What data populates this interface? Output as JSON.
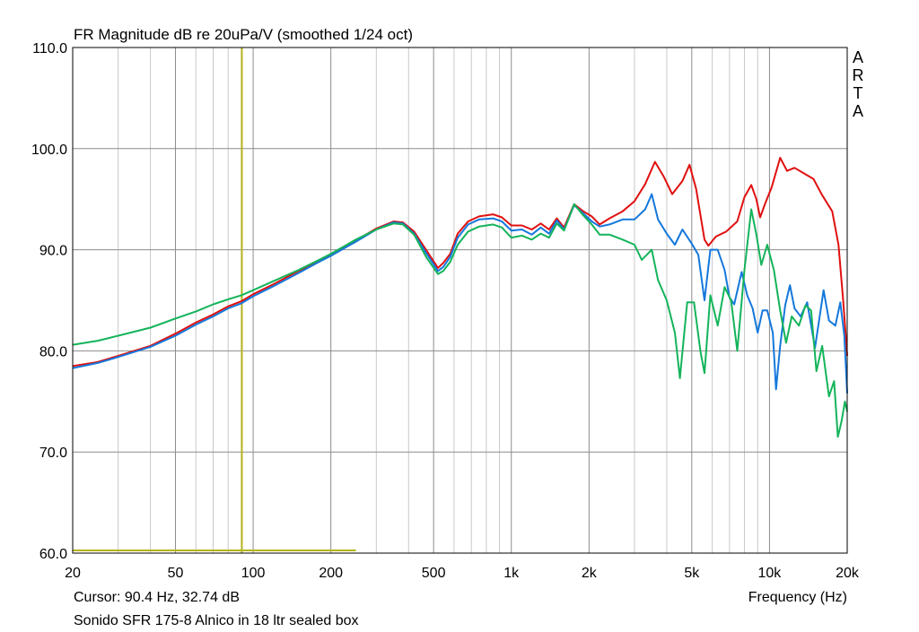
{
  "chart_data": {
    "type": "line",
    "title": "FR Magnitude dB re 20uPa/V (smoothed 1/24 oct)",
    "watermark": [
      "A",
      "R",
      "T",
      "A"
    ],
    "xlabel": "Frequency (Hz)",
    "x_scale": "log",
    "xlim": [
      20,
      20000
    ],
    "ylim": [
      60,
      110
    ],
    "grid": true,
    "x_ticks": [
      {
        "v": 20,
        "label": "20"
      },
      {
        "v": 50,
        "label": "50"
      },
      {
        "v": 100,
        "label": "100"
      },
      {
        "v": 200,
        "label": "200"
      },
      {
        "v": 500,
        "label": "500"
      },
      {
        "v": 1000,
        "label": "1k"
      },
      {
        "v": 2000,
        "label": "2k"
      },
      {
        "v": 5000,
        "label": "5k"
      },
      {
        "v": 10000,
        "label": "10k"
      },
      {
        "v": 20000,
        "label": "20k"
      }
    ],
    "y_ticks": [
      {
        "v": 60,
        "label": "60.0"
      },
      {
        "v": 70,
        "label": "70.0"
      },
      {
        "v": 80,
        "label": "80.0"
      },
      {
        "v": 90,
        "label": "90.0"
      },
      {
        "v": 100,
        "label": "100.0"
      },
      {
        "v": 110,
        "label": "110.0"
      }
    ],
    "cursor": {
      "x": 90.4,
      "y": 32.74,
      "color": "#b4b41e",
      "readout": "Cursor: 90.4 Hz, 32.74 dB",
      "hline_x_max": 250
    },
    "caption": "Sonido SFR 175-8 Alnico in 18 ltr sealed box",
    "series": [
      {
        "color": "#e01010",
        "points": [
          [
            20,
            78.5
          ],
          [
            25,
            78.9
          ],
          [
            30,
            79.5
          ],
          [
            40,
            80.5
          ],
          [
            50,
            81.7
          ],
          [
            60,
            82.8
          ],
          [
            70,
            83.6
          ],
          [
            80,
            84.4
          ],
          [
            90,
            84.9
          ],
          [
            100,
            85.6
          ],
          [
            120,
            86.6
          ],
          [
            150,
            87.9
          ],
          [
            180,
            88.9
          ],
          [
            200,
            89.5
          ],
          [
            250,
            90.9
          ],
          [
            300,
            92.1
          ],
          [
            350,
            92.8
          ],
          [
            380,
            92.7
          ],
          [
            420,
            91.8
          ],
          [
            470,
            89.9
          ],
          [
            520,
            88.2
          ],
          [
            545,
            88.7
          ],
          [
            580,
            89.6
          ],
          [
            620,
            91.6
          ],
          [
            680,
            92.8
          ],
          [
            750,
            93.3
          ],
          [
            850,
            93.5
          ],
          [
            920,
            93.2
          ],
          [
            1000,
            92.4
          ],
          [
            1100,
            92.4
          ],
          [
            1200,
            92.0
          ],
          [
            1300,
            92.6
          ],
          [
            1400,
            92.0
          ],
          [
            1500,
            93.1
          ],
          [
            1600,
            92.2
          ],
          [
            1750,
            94.5
          ],
          [
            1900,
            93.8
          ],
          [
            2050,
            93.3
          ],
          [
            2200,
            92.5
          ],
          [
            2400,
            93.1
          ],
          [
            2700,
            93.8
          ],
          [
            3000,
            94.8
          ],
          [
            3300,
            96.5
          ],
          [
            3600,
            98.7
          ],
          [
            3900,
            97.2
          ],
          [
            4200,
            95.5
          ],
          [
            4600,
            96.8
          ],
          [
            4900,
            98.4
          ],
          [
            5200,
            96.0
          ],
          [
            5600,
            91.0
          ],
          [
            5800,
            90.4
          ],
          [
            6200,
            91.3
          ],
          [
            6800,
            91.8
          ],
          [
            7500,
            92.8
          ],
          [
            8000,
            95.2
          ],
          [
            8500,
            96.4
          ],
          [
            8900,
            95.0
          ],
          [
            9200,
            93.2
          ],
          [
            9600,
            94.5
          ],
          [
            10200,
            96.2
          ],
          [
            11000,
            99.1
          ],
          [
            11700,
            97.8
          ],
          [
            12500,
            98.1
          ],
          [
            13500,
            97.6
          ],
          [
            14800,
            97.0
          ],
          [
            16000,
            95.4
          ],
          [
            17500,
            93.8
          ],
          [
            18500,
            90.5
          ],
          [
            19300,
            85.0
          ],
          [
            20000,
            79.5
          ]
        ]
      },
      {
        "color": "#1478dc",
        "points": [
          [
            20,
            78.3
          ],
          [
            25,
            78.8
          ],
          [
            30,
            79.4
          ],
          [
            40,
            80.4
          ],
          [
            50,
            81.5
          ],
          [
            60,
            82.6
          ],
          [
            70,
            83.4
          ],
          [
            80,
            84.2
          ],
          [
            90,
            84.7
          ],
          [
            100,
            85.4
          ],
          [
            120,
            86.4
          ],
          [
            150,
            87.7
          ],
          [
            180,
            88.8
          ],
          [
            200,
            89.4
          ],
          [
            250,
            90.8
          ],
          [
            300,
            92.0
          ],
          [
            350,
            92.7
          ],
          [
            380,
            92.6
          ],
          [
            420,
            91.6
          ],
          [
            470,
            89.6
          ],
          [
            520,
            87.9
          ],
          [
            545,
            88.3
          ],
          [
            580,
            89.3
          ],
          [
            620,
            91.2
          ],
          [
            680,
            92.5
          ],
          [
            750,
            93.0
          ],
          [
            850,
            93.1
          ],
          [
            920,
            92.8
          ],
          [
            1000,
            91.9
          ],
          [
            1100,
            92.0
          ],
          [
            1200,
            91.5
          ],
          [
            1300,
            92.2
          ],
          [
            1400,
            91.6
          ],
          [
            1500,
            92.9
          ],
          [
            1600,
            92.0
          ],
          [
            1750,
            94.4
          ],
          [
            1900,
            93.6
          ],
          [
            2050,
            92.8
          ],
          [
            2200,
            92.3
          ],
          [
            2400,
            92.5
          ],
          [
            2700,
            93.0
          ],
          [
            3000,
            93.0
          ],
          [
            3300,
            94.0
          ],
          [
            3500,
            95.5
          ],
          [
            3700,
            93.0
          ],
          [
            4000,
            91.6
          ],
          [
            4300,
            90.5
          ],
          [
            4600,
            92.0
          ],
          [
            5000,
            90.6
          ],
          [
            5300,
            89.5
          ],
          [
            5600,
            85.0
          ],
          [
            5900,
            90.0
          ],
          [
            6300,
            90.0
          ],
          [
            6700,
            88.0
          ],
          [
            7000,
            85.3
          ],
          [
            7300,
            84.6
          ],
          [
            7800,
            87.8
          ],
          [
            8200,
            85.5
          ],
          [
            8600,
            84.2
          ],
          [
            9000,
            81.8
          ],
          [
            9400,
            84.0
          ],
          [
            9800,
            84.0
          ],
          [
            10300,
            81.8
          ],
          [
            10600,
            76.2
          ],
          [
            11000,
            80.5
          ],
          [
            11500,
            84.5
          ],
          [
            12000,
            86.5
          ],
          [
            12500,
            84.2
          ],
          [
            13200,
            83.4
          ],
          [
            14000,
            84.8
          ],
          [
            15000,
            80.3
          ],
          [
            16200,
            86.0
          ],
          [
            17000,
            83.0
          ],
          [
            18000,
            82.5
          ],
          [
            18800,
            84.8
          ],
          [
            19500,
            81.5
          ],
          [
            20000,
            75.8
          ]
        ]
      },
      {
        "color": "#14b45a",
        "points": [
          [
            20,
            80.6
          ],
          [
            25,
            81.0
          ],
          [
            30,
            81.5
          ],
          [
            40,
            82.3
          ],
          [
            50,
            83.2
          ],
          [
            60,
            83.9
          ],
          [
            70,
            84.6
          ],
          [
            80,
            85.1
          ],
          [
            90,
            85.5
          ],
          [
            100,
            86.0
          ],
          [
            120,
            86.9
          ],
          [
            150,
            88.0
          ],
          [
            180,
            89.0
          ],
          [
            200,
            89.6
          ],
          [
            250,
            91.0
          ],
          [
            300,
            92.0
          ],
          [
            350,
            92.6
          ],
          [
            380,
            92.5
          ],
          [
            420,
            91.5
          ],
          [
            470,
            89.2
          ],
          [
            520,
            87.6
          ],
          [
            545,
            87.9
          ],
          [
            580,
            88.8
          ],
          [
            620,
            90.5
          ],
          [
            680,
            91.8
          ],
          [
            750,
            92.3
          ],
          [
            850,
            92.5
          ],
          [
            920,
            92.2
          ],
          [
            1000,
            91.2
          ],
          [
            1100,
            91.4
          ],
          [
            1200,
            91.0
          ],
          [
            1300,
            91.6
          ],
          [
            1400,
            91.2
          ],
          [
            1500,
            92.6
          ],
          [
            1600,
            91.9
          ],
          [
            1750,
            94.5
          ],
          [
            1900,
            93.4
          ],
          [
            2050,
            92.5
          ],
          [
            2200,
            91.5
          ],
          [
            2400,
            91.5
          ],
          [
            2700,
            91.0
          ],
          [
            3000,
            90.5
          ],
          [
            3200,
            89.0
          ],
          [
            3500,
            90.0
          ],
          [
            3700,
            87.0
          ],
          [
            4000,
            85.0
          ],
          [
            4300,
            81.8
          ],
          [
            4500,
            77.3
          ],
          [
            4800,
            84.8
          ],
          [
            5100,
            84.8
          ],
          [
            5400,
            80.0
          ],
          [
            5600,
            77.8
          ],
          [
            5900,
            85.5
          ],
          [
            6300,
            82.5
          ],
          [
            6700,
            86.3
          ],
          [
            7100,
            85.0
          ],
          [
            7500,
            80.0
          ],
          [
            8000,
            88.0
          ],
          [
            8500,
            94.0
          ],
          [
            8900,
            91.5
          ],
          [
            9300,
            88.5
          ],
          [
            9800,
            90.5
          ],
          [
            10400,
            88.0
          ],
          [
            11000,
            84.0
          ],
          [
            11600,
            80.8
          ],
          [
            12200,
            83.4
          ],
          [
            13000,
            82.5
          ],
          [
            13800,
            84.5
          ],
          [
            14500,
            84.0
          ],
          [
            15200,
            78.0
          ],
          [
            16000,
            80.5
          ],
          [
            17000,
            75.5
          ],
          [
            17800,
            77.0
          ],
          [
            18400,
            71.5
          ],
          [
            19000,
            73.0
          ],
          [
            19600,
            75.0
          ],
          [
            20000,
            74.0
          ]
        ]
      }
    ]
  }
}
